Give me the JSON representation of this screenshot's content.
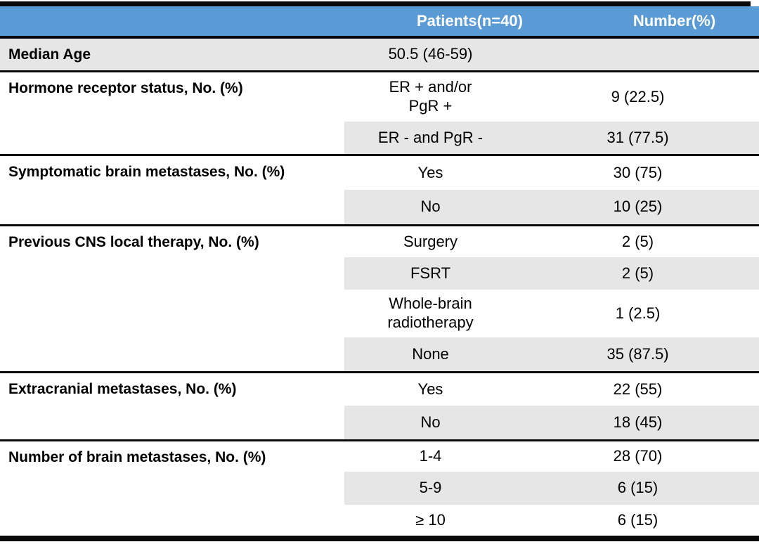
{
  "header": {
    "patients_label": "Patients(n=40)",
    "number_label": "Number(%)"
  },
  "colors": {
    "header_bg": "#5B9BD5",
    "header_text": "#FFFFFF",
    "shaded_row_bg": "#E7E6E6",
    "border": "#0A0A0A"
  },
  "sections": [
    {
      "label": "Median Age",
      "rows": [
        {
          "value": "50.5 (46-59)",
          "number": ""
        }
      ]
    },
    {
      "label": "Hormone receptor status, No. (%)",
      "rows": [
        {
          "value": "ER + and/or\nPgR +",
          "number": "9 (22.5)"
        },
        {
          "value": "ER - and PgR -",
          "number": "31 (77.5)"
        }
      ]
    },
    {
      "label": "Symptomatic brain metastases, No. (%)",
      "rows": [
        {
          "value": "Yes",
          "number": "30 (75)"
        },
        {
          "value": "No",
          "number": "10 (25)"
        }
      ]
    },
    {
      "label": "Previous CNS local therapy, No. (%)",
      "rows": [
        {
          "value": "Surgery",
          "number": "2 (5)"
        },
        {
          "value": "FSRT",
          "number": "2 (5)"
        },
        {
          "value": "Whole-brain\nradiotherapy",
          "number": "1 (2.5)"
        },
        {
          "value": "None",
          "number": "35 (87.5)"
        }
      ]
    },
    {
      "label": "Extracranial metastases, No. (%)",
      "rows": [
        {
          "value": "Yes",
          "number": "22 (55)"
        },
        {
          "value": "No",
          "number": "18 (45)"
        }
      ]
    },
    {
      "label": "Number of brain metastases, No. (%)",
      "rows": [
        {
          "value": "1-4",
          "number": "28 (70)"
        },
        {
          "value": "5-9",
          "number": "6 (15)"
        },
        {
          "value": "≥ 10",
          "number": "6 (15)"
        }
      ]
    }
  ]
}
